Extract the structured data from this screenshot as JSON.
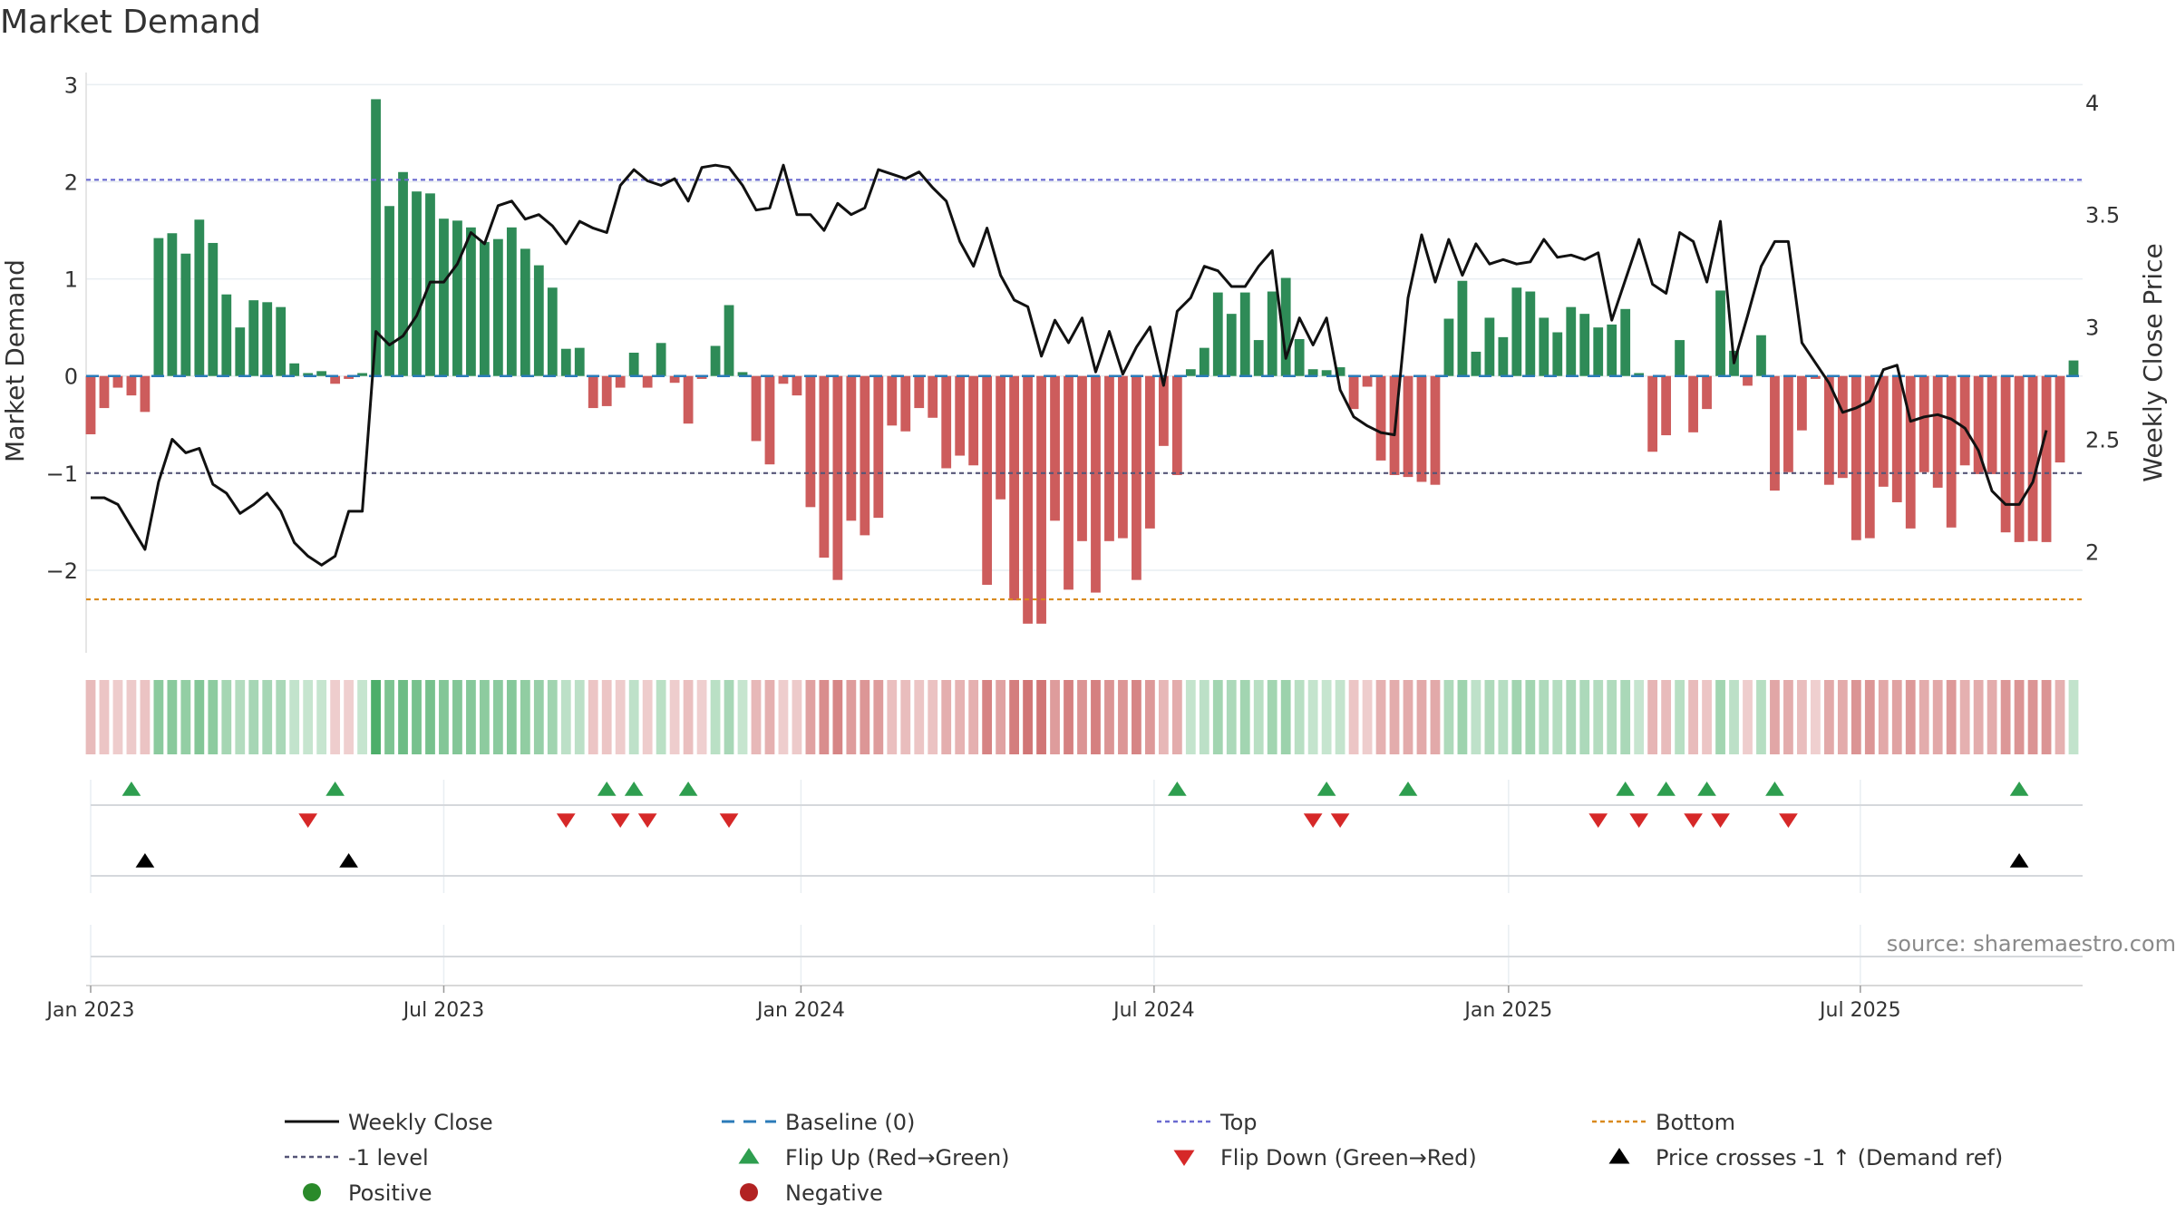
{
  "chart_data": {
    "type": "bar",
    "title": "Market Demand",
    "ylabel": "Market Demand",
    "y2label": "Weekly Close Price",
    "source": "source: sharemaestro.com",
    "ylim": [
      -2.85,
      3.05
    ],
    "y2lim": [
      1.55,
      4.1
    ],
    "yticks": [
      3,
      2,
      1,
      0,
      -1,
      -2
    ],
    "ytick_labels": [
      "3",
      "2",
      "1",
      "0",
      "−1",
      "−2"
    ],
    "y2ticks": [
      4,
      3.5,
      3,
      2.5,
      2
    ],
    "y2tick_labels": [
      "4",
      "3.5",
      "3",
      "2.5",
      "2"
    ],
    "x_start": "2023-01-02",
    "xticks": [
      {
        "label": "Jan 2023",
        "week": 0
      },
      {
        "label": "Jul 2023",
        "week": 26
      },
      {
        "label": "Jan 2024",
        "week": 52.3
      },
      {
        "label": "Jul 2024",
        "week": 78.3
      },
      {
        "label": "Jan 2025",
        "week": 104.4
      },
      {
        "label": "Jul 2025",
        "week": 130.3
      }
    ],
    "levels": {
      "top": 2.02,
      "minus_one": -1.0,
      "bottom": -2.3
    },
    "bars": [
      -0.6,
      -0.33,
      -0.12,
      -0.2,
      -0.37,
      1.42,
      1.47,
      1.26,
      1.61,
      1.37,
      0.84,
      0.5,
      0.78,
      0.76,
      0.71,
      0.13,
      0.03,
      0.05,
      -0.08,
      -0.03,
      0.03,
      2.85,
      1.75,
      2.1,
      1.9,
      1.88,
      1.62,
      1.6,
      1.53,
      1.38,
      1.41,
      1.53,
      1.31,
      1.14,
      0.91,
      0.28,
      0.29,
      -0.33,
      -0.31,
      -0.12,
      0.24,
      -0.12,
      0.34,
      -0.07,
      -0.49,
      -0.03,
      0.31,
      0.73,
      0.04,
      -0.67,
      -0.91,
      -0.08,
      -0.2,
      -1.35,
      -1.87,
      -2.1,
      -1.49,
      -1.64,
      -1.46,
      -0.51,
      -0.57,
      -0.33,
      -0.43,
      -0.95,
      -0.82,
      -0.92,
      -2.15,
      -1.27,
      -2.31,
      -2.55,
      -2.55,
      -1.49,
      -2.2,
      -1.7,
      -2.23,
      -1.7,
      -1.67,
      -2.1,
      -1.57,
      -0.72,
      -1.02,
      0.07,
      0.29,
      0.86,
      0.64,
      0.86,
      0.37,
      0.87,
      1.01,
      0.38,
      0.07,
      0.06,
      0.09,
      -0.34,
      -0.11,
      -0.87,
      -1.02,
      -1.04,
      -1.09,
      -1.12,
      0.59,
      0.98,
      0.25,
      0.6,
      0.4,
      0.91,
      0.87,
      0.6,
      0.45,
      0.71,
      0.64,
      0.5,
      0.53,
      0.69,
      0.03,
      -0.78,
      -0.61,
      0.37,
      -0.58,
      -0.34,
      0.88,
      0.26,
      -0.1,
      0.42,
      -1.18,
      -0.99,
      -0.56,
      -0.03,
      -1.12,
      -1.05,
      -1.69,
      -1.67,
      -1.14,
      -1.3,
      -1.57,
      -0.99,
      -1.15,
      -1.56,
      -0.92,
      -1.01,
      -1.01,
      -1.61,
      -1.71,
      -1.7,
      -1.71,
      -0.89,
      0.16
    ],
    "price": [
      2.24,
      2.24,
      2.21,
      2.11,
      2.01,
      2.31,
      2.5,
      2.44,
      2.46,
      2.3,
      2.26,
      2.17,
      2.21,
      2.26,
      2.18,
      2.04,
      1.98,
      1.94,
      1.98,
      2.18,
      2.18,
      2.98,
      2.92,
      2.96,
      3.05,
      3.2,
      3.2,
      3.28,
      3.42,
      3.37,
      3.54,
      3.56,
      3.48,
      3.5,
      3.45,
      3.37,
      3.47,
      3.44,
      3.42,
      3.63,
      3.7,
      3.65,
      3.63,
      3.66,
      3.56,
      3.71,
      3.72,
      3.71,
      3.63,
      3.52,
      3.53,
      3.72,
      3.5,
      3.5,
      3.43,
      3.55,
      3.5,
      3.53,
      3.7,
      3.68,
      3.66,
      3.69,
      3.62,
      3.56,
      3.38,
      3.27,
      3.44,
      3.23,
      3.12,
      3.09,
      2.87,
      3.03,
      2.93,
      3.04,
      2.8,
      2.98,
      2.79,
      2.91,
      3.0,
      2.74,
      3.07,
      3.13,
      3.27,
      3.25,
      3.18,
      3.18,
      3.27,
      3.34,
      2.86,
      3.04,
      2.92,
      3.04,
      2.72,
      2.6,
      2.56,
      2.53,
      2.52,
      3.13,
      3.41,
      3.2,
      3.39,
      3.23,
      3.37,
      3.28,
      3.3,
      3.28,
      3.29,
      3.39,
      3.31,
      3.32,
      3.3,
      3.33,
      3.03,
      3.21,
      3.39,
      3.19,
      3.15,
      3.42,
      3.38,
      3.2,
      3.47,
      2.84,
      3.05,
      3.27,
      3.38,
      3.38,
      2.93,
      2.84,
      2.75,
      2.62,
      2.64,
      2.67,
      2.81,
      2.83,
      2.58,
      2.6,
      2.61,
      2.59,
      2.55,
      2.45,
      2.27,
      2.21,
      2.21,
      2.31,
      2.54
    ],
    "flip_up_weeks": [
      3,
      18,
      38,
      40,
      44,
      80,
      91,
      97,
      113,
      116,
      119,
      124,
      142
    ],
    "flip_down_weeks": [
      16,
      35,
      39,
      41,
      47,
      90,
      92,
      111,
      114,
      118,
      120,
      125
    ],
    "price_cross_weeks": [
      4,
      19,
      142
    ],
    "legend": [
      {
        "label": "Weekly Close",
        "kind": "line",
        "color": "#111111"
      },
      {
        "label": "Baseline (0)",
        "kind": "dash",
        "color": "#2b7bb9"
      },
      {
        "label": "Top",
        "kind": "dotted",
        "color": "#6a6ad0"
      },
      {
        "label": "Bottom",
        "kind": "dotted",
        "color": "#d98a1e"
      },
      {
        "label": "-1 level",
        "kind": "dotted",
        "color": "#555577"
      },
      {
        "label": "Flip Up (Red→Green)",
        "kind": "tri-up",
        "color": "#2e9e4f"
      },
      {
        "label": "Flip Down (Green→Red)",
        "kind": "tri-down",
        "color": "#d62828"
      },
      {
        "label": "Price crosses -1 ↑ (Demand ref)",
        "kind": "tri-up",
        "color": "#000000"
      },
      {
        "label": "Positive",
        "kind": "dot",
        "color": "#2a8a2a"
      },
      {
        "label": "Negative",
        "kind": "dot",
        "color": "#b22222"
      }
    ],
    "colors": {
      "positive": "#2e8b57",
      "negative": "#cd5c5c",
      "price": "#111111"
    }
  }
}
